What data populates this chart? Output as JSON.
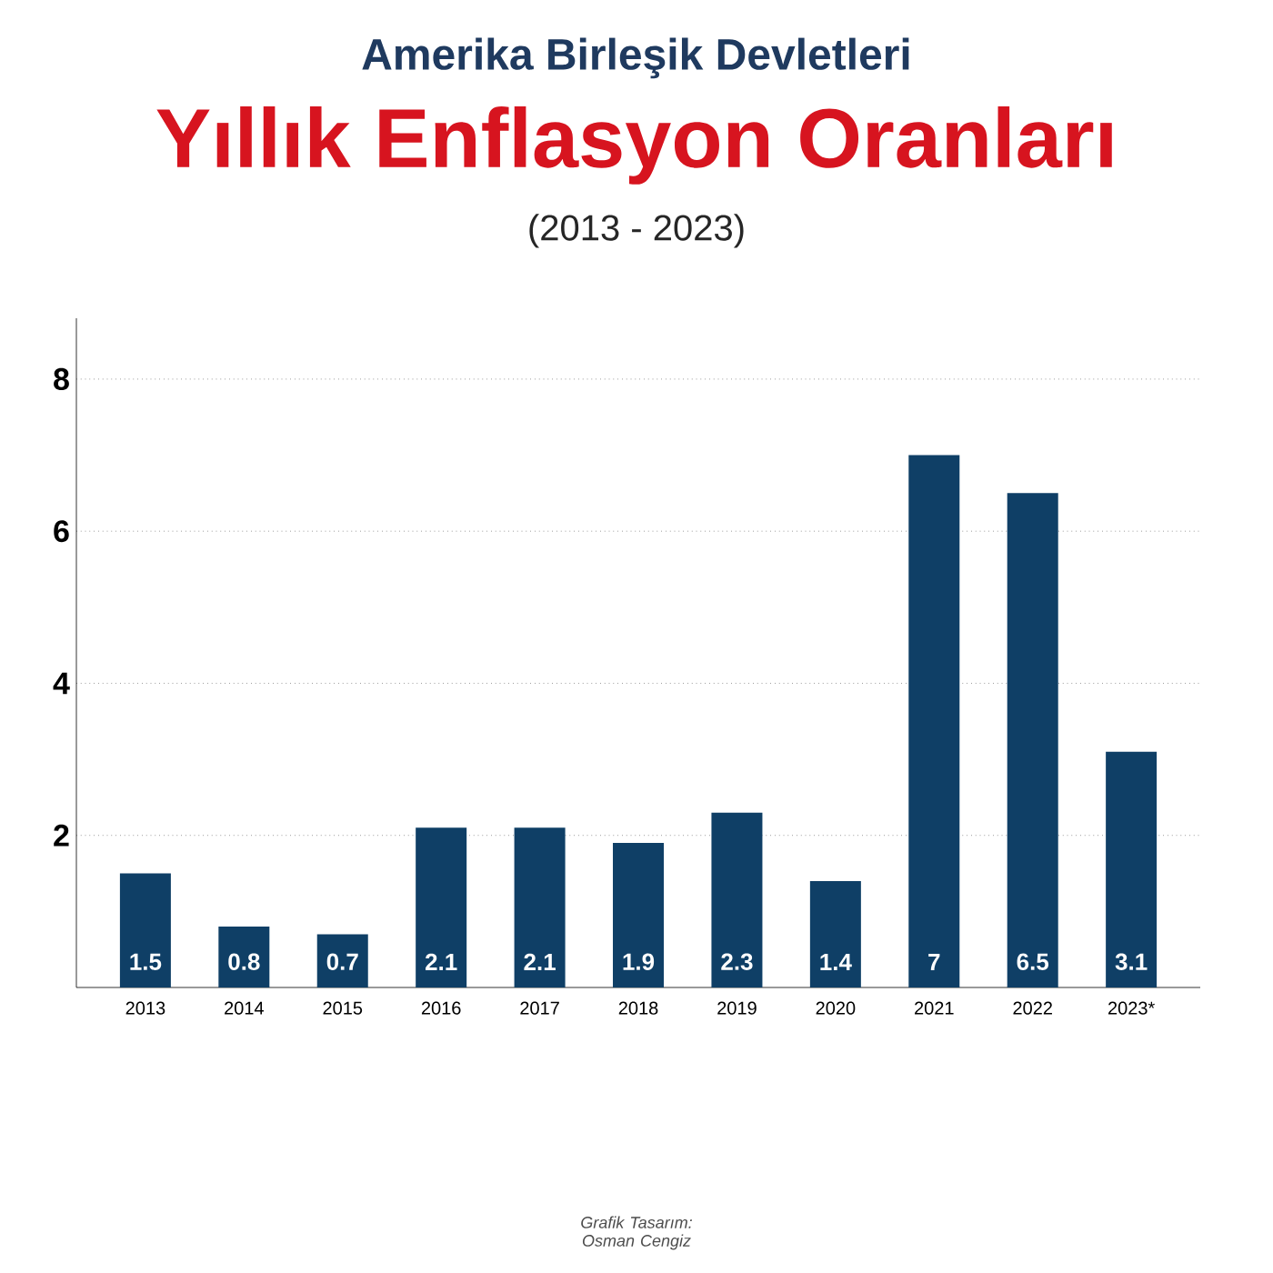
{
  "chart_data": {
    "type": "bar",
    "title": "Yıllık Enflasyon Oranları",
    "subtitle": "(2013 - 2023)",
    "annotations": [
      "Amerika Birleşik Devletleri",
      "Grafik Tasarım: Osman Cengiz"
    ],
    "categories": [
      "2013",
      "2014",
      "2015",
      "2016",
      "2017",
      "2018",
      "2019",
      "2020",
      "2021",
      "2022",
      "2023*"
    ],
    "values": [
      1.5,
      0.8,
      0.7,
      2.1,
      2.1,
      1.9,
      2.3,
      1.4,
      7,
      6.5,
      3.1
    ],
    "color": "#0f3f66",
    "data_labels": true,
    "ylim": [
      0,
      8.8
    ],
    "yticks": [
      2,
      4,
      6,
      8
    ],
    "grid": "y"
  }
}
